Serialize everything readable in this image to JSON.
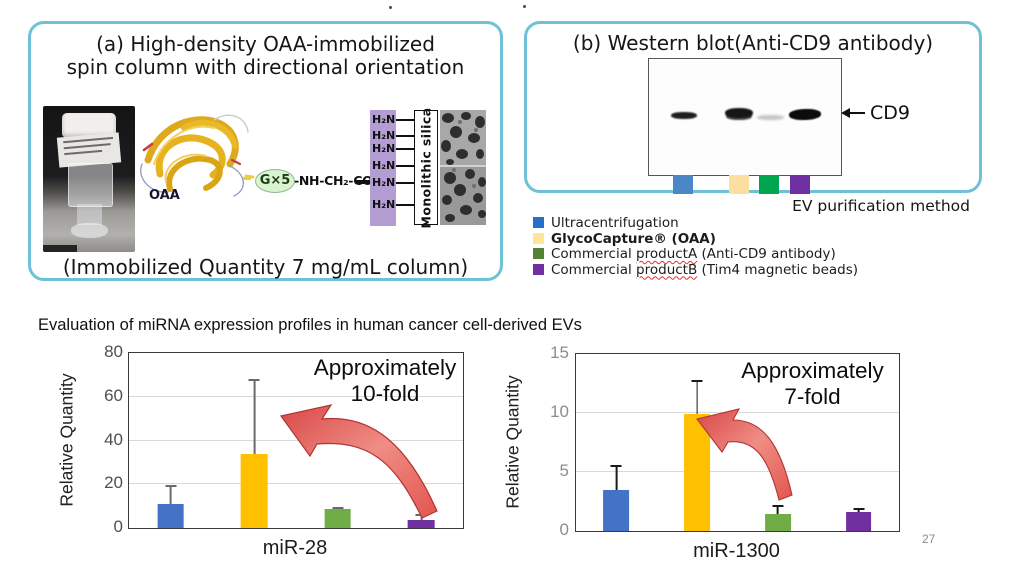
{
  "slide": {
    "page_number": "27",
    "section_title": "Evaluation of miRNA expression profiles in human cancer cell-derived EVs"
  },
  "panel_a": {
    "title_line1": "(a)  High-density OAA-immobilized",
    "title_line2": "spin column with directional orientation",
    "caption": "(Immobilized Quantity 7 mg/mL column)",
    "protein_label": "OAA",
    "linker_unit": "G×5",
    "linker_chain": "-NH-CH₂-CO",
    "amine_label": "H₂N",
    "silica_label": "Monolithic silica"
  },
  "panel_b": {
    "title": "(b) Western blot(Anti-CD9 antibody)",
    "band_label": "CD9",
    "axis_caption": "EV purification method",
    "method_colors": {
      "blue": "#4a86c8",
      "yellow": "#fbdf9e",
      "green": "#00a550",
      "purple": "#7030a0"
    },
    "legend": [
      {
        "prefix": "Ultracentrifugation",
        "word": "",
        "suffix": "",
        "color": "#2472c8"
      },
      {
        "prefix": "GlycoCapture® (OAA)",
        "word": "",
        "suffix": "",
        "color": "#ffe49c"
      },
      {
        "prefix": "Commercial ",
        "word": "productA",
        "suffix": " (Anti-CD9 antibody)",
        "color": "#548235"
      },
      {
        "prefix": "Commercial ",
        "word": "productB",
        "suffix": " (Tim4 magnetic beads)",
        "color": "#7030a0"
      }
    ]
  },
  "chart_data": [
    {
      "type": "bar",
      "title": "miR-28",
      "ylabel": "Relative Quantity",
      "ylim": [
        0,
        80
      ],
      "yticks": [
        0,
        20,
        40,
        60,
        80
      ],
      "grid": true,
      "legend_position": "none",
      "categories": [
        "Ultracentrifugation",
        "GlycoCapture® (OAA)",
        "Commercial productA (Anti-CD9 antibody)",
        "Commercial productB (Tim4 magnetic beads)"
      ],
      "values": [
        11,
        34,
        8.5,
        3.5
      ],
      "errors_plus": [
        8.5,
        34,
        1,
        3
      ],
      "bar_colors": [
        "#4472c4",
        "#ffc000",
        "#70ad47",
        "#7030a0"
      ],
      "annotation": "Approximately\n10-fold"
    },
    {
      "type": "bar",
      "title": "miR-1300",
      "ylabel": "Relative Quantity",
      "ylim": [
        0,
        15
      ],
      "yticks": [
        0,
        5,
        10,
        15
      ],
      "grid": true,
      "legend_position": "none",
      "categories": [
        "Ultracentrifugation",
        "GlycoCapture® (OAA)",
        "Commercial productA (Anti-CD9 antibody)",
        "Commercial productB (Tim4 magnetic beads)"
      ],
      "values": [
        3.5,
        9.9,
        1.4,
        1.6
      ],
      "errors_plus": [
        2.1,
        2.9,
        0.8,
        0.35
      ],
      "bar_colors": [
        "#4472c4",
        "#ffc000",
        "#70ad47",
        "#7030a0"
      ],
      "annotation": "Approximately\n7-fold"
    }
  ]
}
